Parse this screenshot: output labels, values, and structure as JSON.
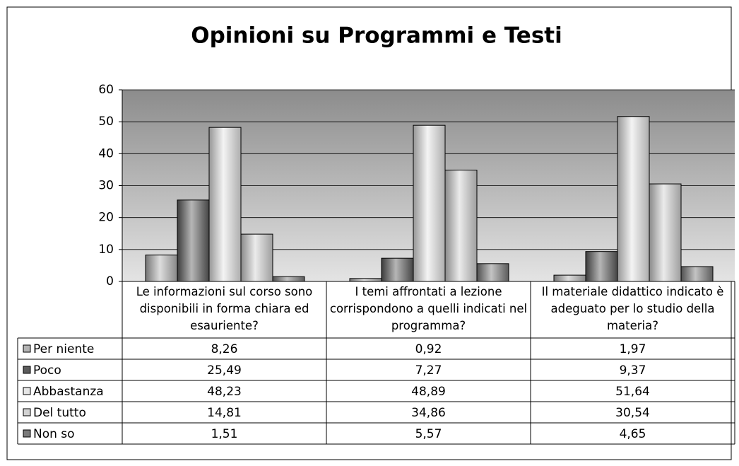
{
  "chart_data": {
    "type": "bar",
    "title": "Opinioni su Programmi e Testi",
    "categories": [
      "Le informazioni sul corso sono disponibili in forma chiara ed esauriente?",
      "I temi affrontati a lezione corrispondono a quelli indicati nel programma?",
      "Il materiale didattico indicato è adeguato per lo studio della materia?"
    ],
    "series": [
      {
        "name": "Per niente",
        "color": "#b4b4b4",
        "values": [
          8.26,
          0.92,
          1.97
        ],
        "value_labels": [
          "8,26",
          "0,92",
          "1,97"
        ]
      },
      {
        "name": "Poco",
        "color": "#5c5c5c",
        "values": [
          25.49,
          7.27,
          9.37
        ],
        "value_labels": [
          "25,49",
          "7,27",
          "9,37"
        ]
      },
      {
        "name": "Abbastanza",
        "color": "#e6e6e6",
        "values": [
          48.23,
          48.89,
          51.64
        ],
        "value_labels": [
          "48,23",
          "48,89",
          "51,64"
        ]
      },
      {
        "name": "Del tutto",
        "color": "#d2d2d2",
        "values": [
          14.81,
          34.86,
          30.54
        ],
        "value_labels": [
          "14,81",
          "34,86",
          "30,54"
        ]
      },
      {
        "name": "Non so",
        "color": "#7a7a7a",
        "values": [
          1.51,
          5.57,
          4.65
        ],
        "value_labels": [
          "1,51",
          "5,57",
          "4,65"
        ]
      }
    ],
    "ylim": [
      0,
      60
    ],
    "yticks": [
      0,
      10,
      20,
      30,
      40,
      50,
      60
    ],
    "grid": true,
    "data_table": true
  }
}
